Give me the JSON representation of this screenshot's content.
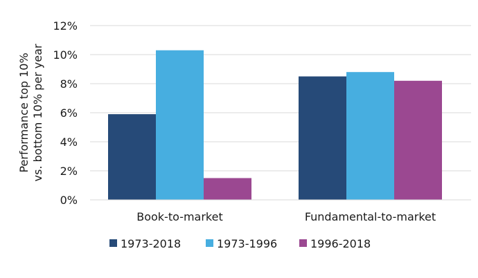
{
  "chart_data": {
    "type": "bar",
    "categories": [
      "Book-to-market",
      "Fundamental-to-market"
    ],
    "series": [
      {
        "name": "1973-2018",
        "values": [
          5.9,
          8.5
        ],
        "color": "#264a78"
      },
      {
        "name": "1973-1996",
        "values": [
          10.3,
          8.8
        ],
        "color": "#47aee0"
      },
      {
        "name": "1996-2018",
        "values": [
          1.5,
          8.2
        ],
        "color": "#9b4891"
      }
    ],
    "ylabel_lines": [
      "Performance top 10%",
      "vs. bottom 10% per year"
    ],
    "ylim": [
      0,
      12
    ],
    "yticks": [
      0,
      2,
      4,
      6,
      8,
      10,
      12
    ],
    "ytick_suffix": "%",
    "grid": true,
    "legend_position": "bottom"
  }
}
